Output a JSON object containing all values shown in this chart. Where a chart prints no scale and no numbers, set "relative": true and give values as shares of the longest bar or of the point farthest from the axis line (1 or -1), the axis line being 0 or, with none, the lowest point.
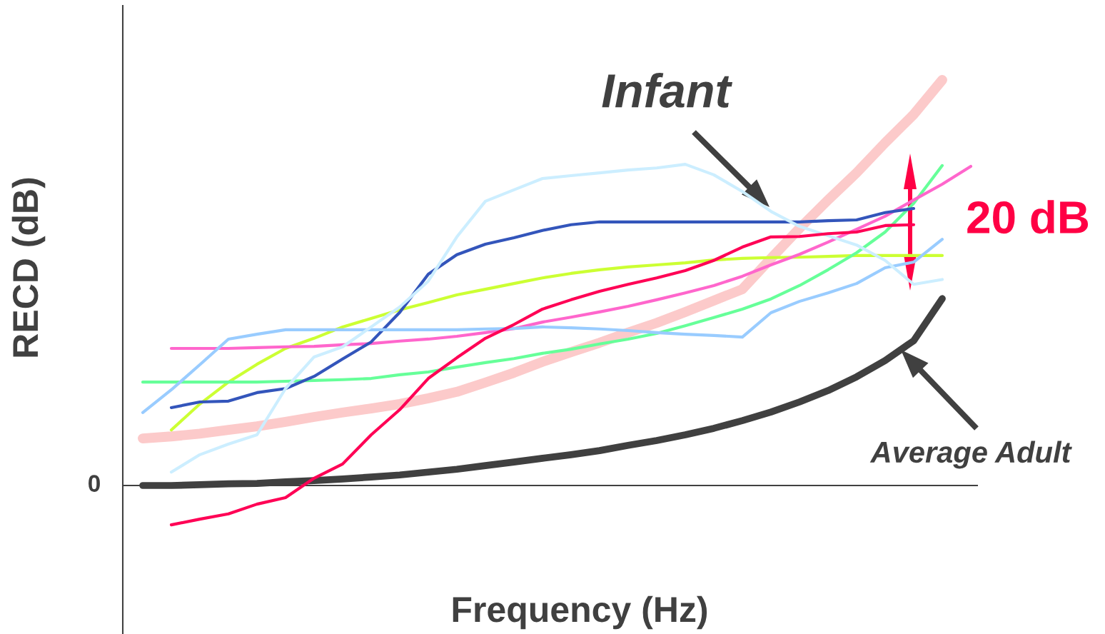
{
  "chart_data": {
    "type": "line",
    "relative": true,
    "xlabel": "Frequency (Hz)",
    "ylabel": "RECD (dB)",
    "categories": [
      null,
      null,
      null,
      null,
      null,
      null,
      null,
      null,
      null,
      null,
      null,
      null,
      null,
      null,
      null,
      null,
      null,
      null,
      null,
      null,
      null,
      null,
      null,
      null,
      null,
      null,
      null,
      null,
      null,
      null
    ],
    "series": [
      {
        "color": "#fccaca",
        "values": [
          0.116,
          0.121,
          0.128,
          0.137,
          0.146,
          0.157,
          0.169,
          0.18,
          0.19,
          0.201,
          0.215,
          0.231,
          0.254,
          0.278,
          0.305,
          0.329,
          0.352,
          0.377,
          0.401,
          0.428,
          0.456,
          0.484,
          0.56,
          0.634,
          0.704,
          0.771,
          0.845,
          0.915,
          1.0,
          null
        ]
      },
      {
        "color": "#ccff33",
        "values": [
          null,
          0.137,
          0.201,
          0.255,
          0.299,
          0.338,
          0.363,
          0.391,
          0.412,
          0.433,
          0.451,
          0.47,
          0.484,
          0.498,
          0.512,
          0.523,
          0.532,
          0.539,
          0.544,
          0.549,
          0.556,
          0.56,
          0.562,
          0.563,
          0.565,
          0.567,
          0.567,
          0.567,
          0.567,
          null
        ]
      },
      {
        "color": "#66ff99",
        "values": [
          0.255,
          0.255,
          0.255,
          0.255,
          0.255,
          0.257,
          0.259,
          0.261,
          0.264,
          0.273,
          0.28,
          0.292,
          0.303,
          0.313,
          0.326,
          0.336,
          0.349,
          0.361,
          0.375,
          0.394,
          0.414,
          0.435,
          0.46,
          0.493,
          0.532,
          0.574,
          0.625,
          0.696,
          0.789,
          null
        ]
      },
      {
        "color": "#ff66cc",
        "values": [
          null,
          0.338,
          0.338,
          0.338,
          0.34,
          0.342,
          0.343,
          0.347,
          0.35,
          0.356,
          0.361,
          0.368,
          0.377,
          0.387,
          0.403,
          0.415,
          0.428,
          0.442,
          0.458,
          0.475,
          0.493,
          0.516,
          0.544,
          0.57,
          0.6,
          0.632,
          0.664,
          0.704,
          0.743,
          0.787
        ]
      },
      {
        "color": "#3355bb",
        "values": [
          null,
          0.192,
          0.206,
          0.208,
          0.229,
          0.239,
          0.269,
          0.312,
          0.354,
          0.427,
          0.521,
          0.569,
          0.595,
          0.611,
          0.629,
          0.643,
          0.65,
          0.65,
          0.65,
          0.65,
          0.65,
          0.65,
          0.65,
          0.65,
          0.653,
          0.655,
          0.673,
          0.683,
          null,
          null
        ]
      },
      {
        "color": "#99ccff",
        "values": [
          0.18,
          0.236,
          0.298,
          0.361,
          0.373,
          0.384,
          0.384,
          0.384,
          0.384,
          0.384,
          0.384,
          0.384,
          0.386,
          0.387,
          0.391,
          0.389,
          0.386,
          0.382,
          0.377,
          0.373,
          0.37,
          0.366,
          0.426,
          0.454,
          0.475,
          0.498,
          0.537,
          0.551,
          0.607,
          null
        ]
      },
      {
        "color": "#cceeff",
        "values": [
          null,
          0.033,
          0.076,
          0.102,
          0.125,
          0.239,
          0.317,
          0.342,
          0.391,
          0.44,
          0.504,
          0.613,
          0.701,
          0.729,
          0.757,
          0.764,
          0.771,
          0.778,
          0.783,
          0.792,
          0.766,
          0.725,
          0.676,
          0.639,
          0.616,
          0.593,
          0.555,
          0.496,
          0.508,
          null
        ]
      },
      {
        "color": "#ff0055",
        "values": [
          null,
          -0.097,
          -0.083,
          -0.07,
          -0.046,
          -0.03,
          0.018,
          0.053,
          0.125,
          0.187,
          0.264,
          0.315,
          0.363,
          0.397,
          0.435,
          0.458,
          0.479,
          0.496,
          0.512,
          0.53,
          0.555,
          0.588,
          0.613,
          0.614,
          0.621,
          0.625,
          0.641,
          0.643,
          null,
          null
        ]
      },
      {
        "color": "#404040",
        "values": [
          0.0,
          0.0,
          0.002,
          0.004,
          0.005,
          0.009,
          0.012,
          0.016,
          0.021,
          0.026,
          0.033,
          0.04,
          0.049,
          0.058,
          0.067,
          0.076,
          0.086,
          0.099,
          0.111,
          0.125,
          0.141,
          0.16,
          0.181,
          0.206,
          0.234,
          0.268,
          0.308,
          0.357,
          0.461,
          null
        ]
      }
    ],
    "annotations": [
      "0",
      "Infant",
      "Average Adult",
      "20 dB"
    ]
  }
}
